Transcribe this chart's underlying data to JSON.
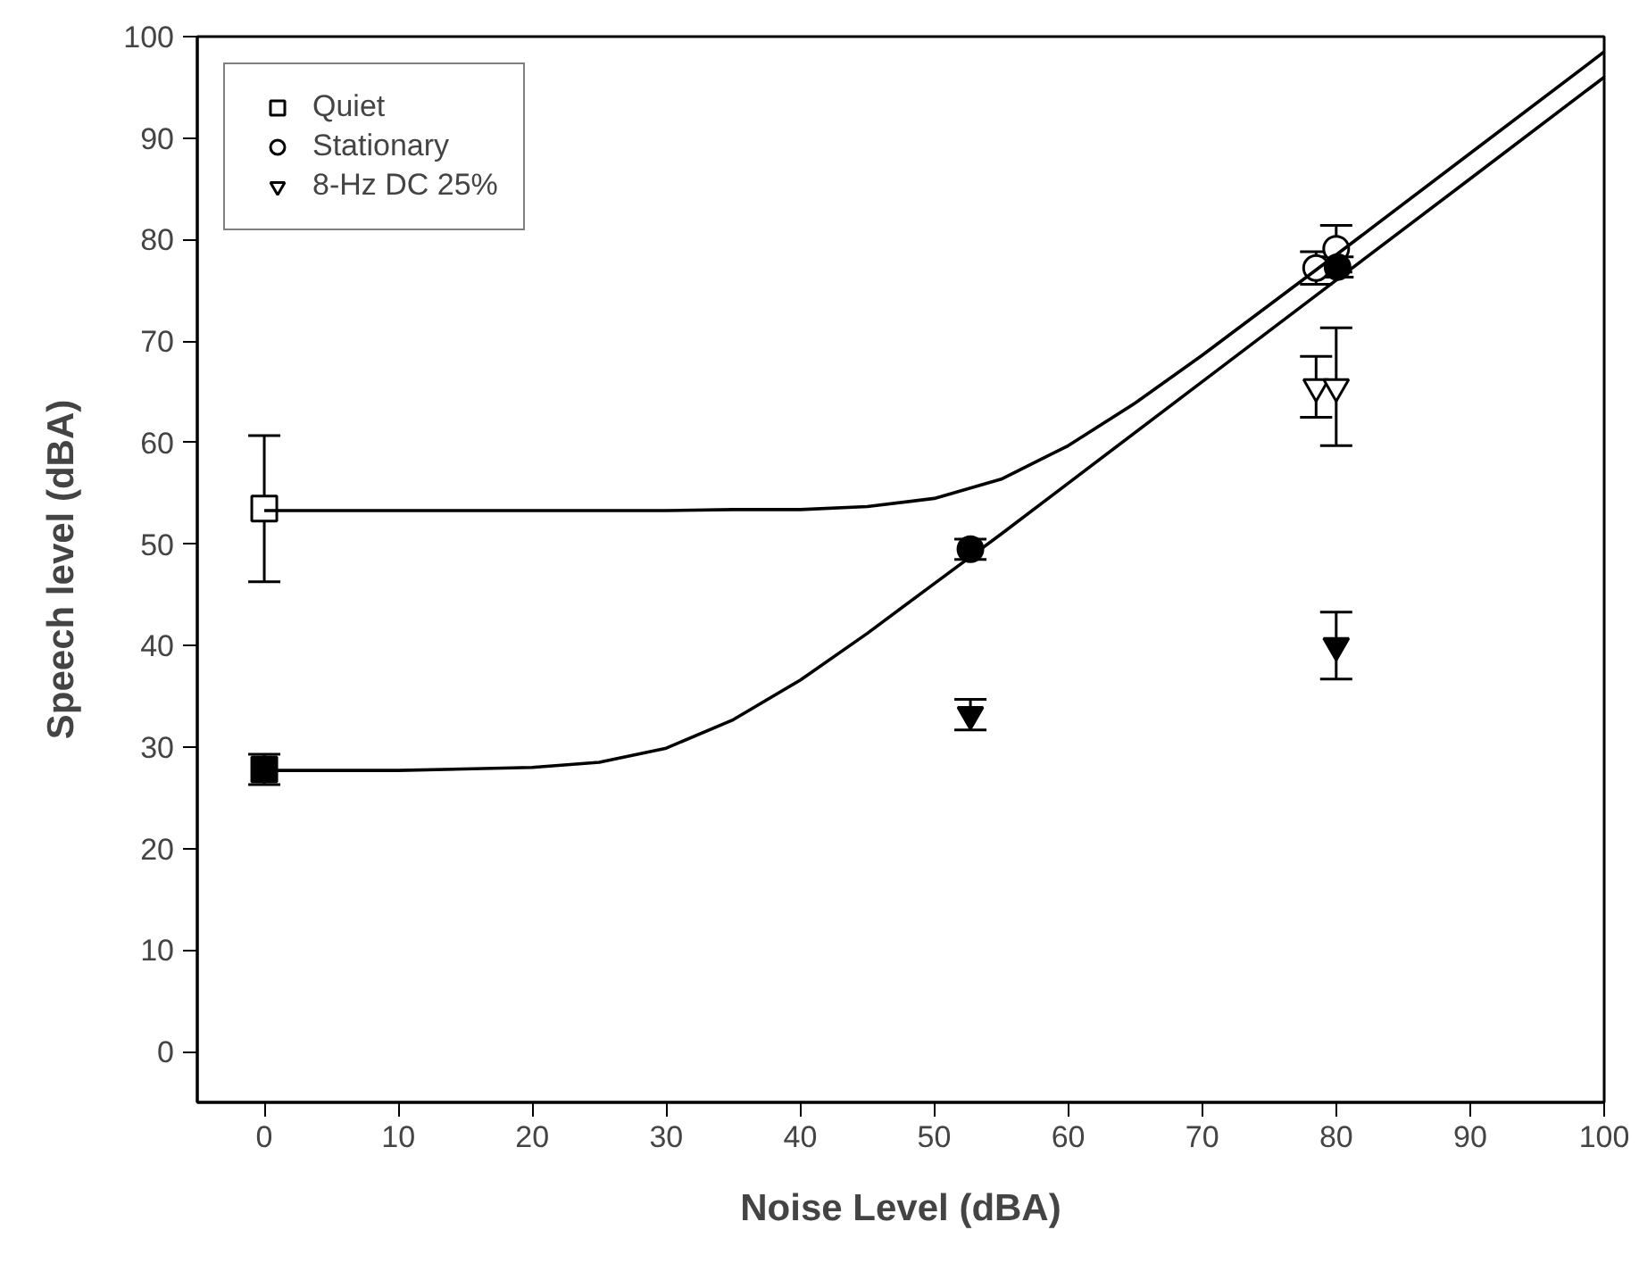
{
  "chart_data": {
    "type": "scatter",
    "xlabel": "Noise Level (dBA)",
    "ylabel": "Speech level (dBA)",
    "xlim": [
      -5,
      100
    ],
    "ylim": [
      -5,
      100
    ],
    "xticks": [
      0,
      10,
      20,
      30,
      40,
      50,
      60,
      70,
      80,
      90,
      100
    ],
    "yticks": [
      0,
      10,
      20,
      30,
      40,
      50,
      60,
      70,
      80,
      90,
      100
    ],
    "grid": false,
    "legend": "top left",
    "series": [
      {
        "name": "Quiet",
        "marker": "square",
        "color": "#ffffff",
        "x": [
          0
        ],
        "values": [
          53.5
        ],
        "errors": [
          7.2
        ]
      },
      {
        "name": "Stationary",
        "marker": "circle",
        "color": "#ffffff",
        "x": [
          78.5,
          80
        ],
        "values": [
          77.2,
          79.1
        ],
        "errors": [
          1.6,
          2.3
        ]
      },
      {
        "name": "8-Hz DC 25%",
        "marker": "triangle",
        "color": "#ffffff",
        "x": [
          78.5,
          80
        ],
        "values": [
          65.5,
          65.5
        ],
        "errors": [
          3,
          5.8
        ]
      },
      {
        "marker": "square",
        "color": "#000000",
        "x": [
          0
        ],
        "values": [
          27.8
        ],
        "errors": [
          1.5
        ]
      },
      {
        "marker": "circle",
        "color": "#000000",
        "x": [
          52.7,
          80.1
        ],
        "values": [
          49.5,
          77.3
        ],
        "errors": [
          1,
          1
        ]
      },
      {
        "marker": "triangle",
        "color": "#000000",
        "x": [
          52.7,
          80
        ],
        "values": [
          33.2,
          40
        ],
        "errors": [
          1.5,
          3.3
        ]
      },
      {
        "type": "line",
        "color": "#000000",
        "x": [
          0,
          10,
          20,
          30,
          35,
          40,
          45,
          50,
          55,
          60,
          65,
          70,
          80,
          90,
          100
        ],
        "values": [
          53.3,
          53.3,
          53.3,
          53.3,
          53.4,
          53.4,
          53.7,
          54.5,
          56.4,
          59.7,
          63.9,
          68.6,
          78.5,
          88.5,
          98.5
        ]
      },
      {
        "type": "line",
        "color": "#000000",
        "x": [
          0,
          10,
          20,
          25,
          30,
          35,
          40,
          45,
          50,
          55,
          60,
          70,
          80,
          90,
          100
        ],
        "values": [
          27.7,
          27.7,
          28,
          28.5,
          29.9,
          32.7,
          36.6,
          41.2,
          46.1,
          51,
          56,
          66,
          76,
          86,
          96
        ]
      }
    ]
  }
}
